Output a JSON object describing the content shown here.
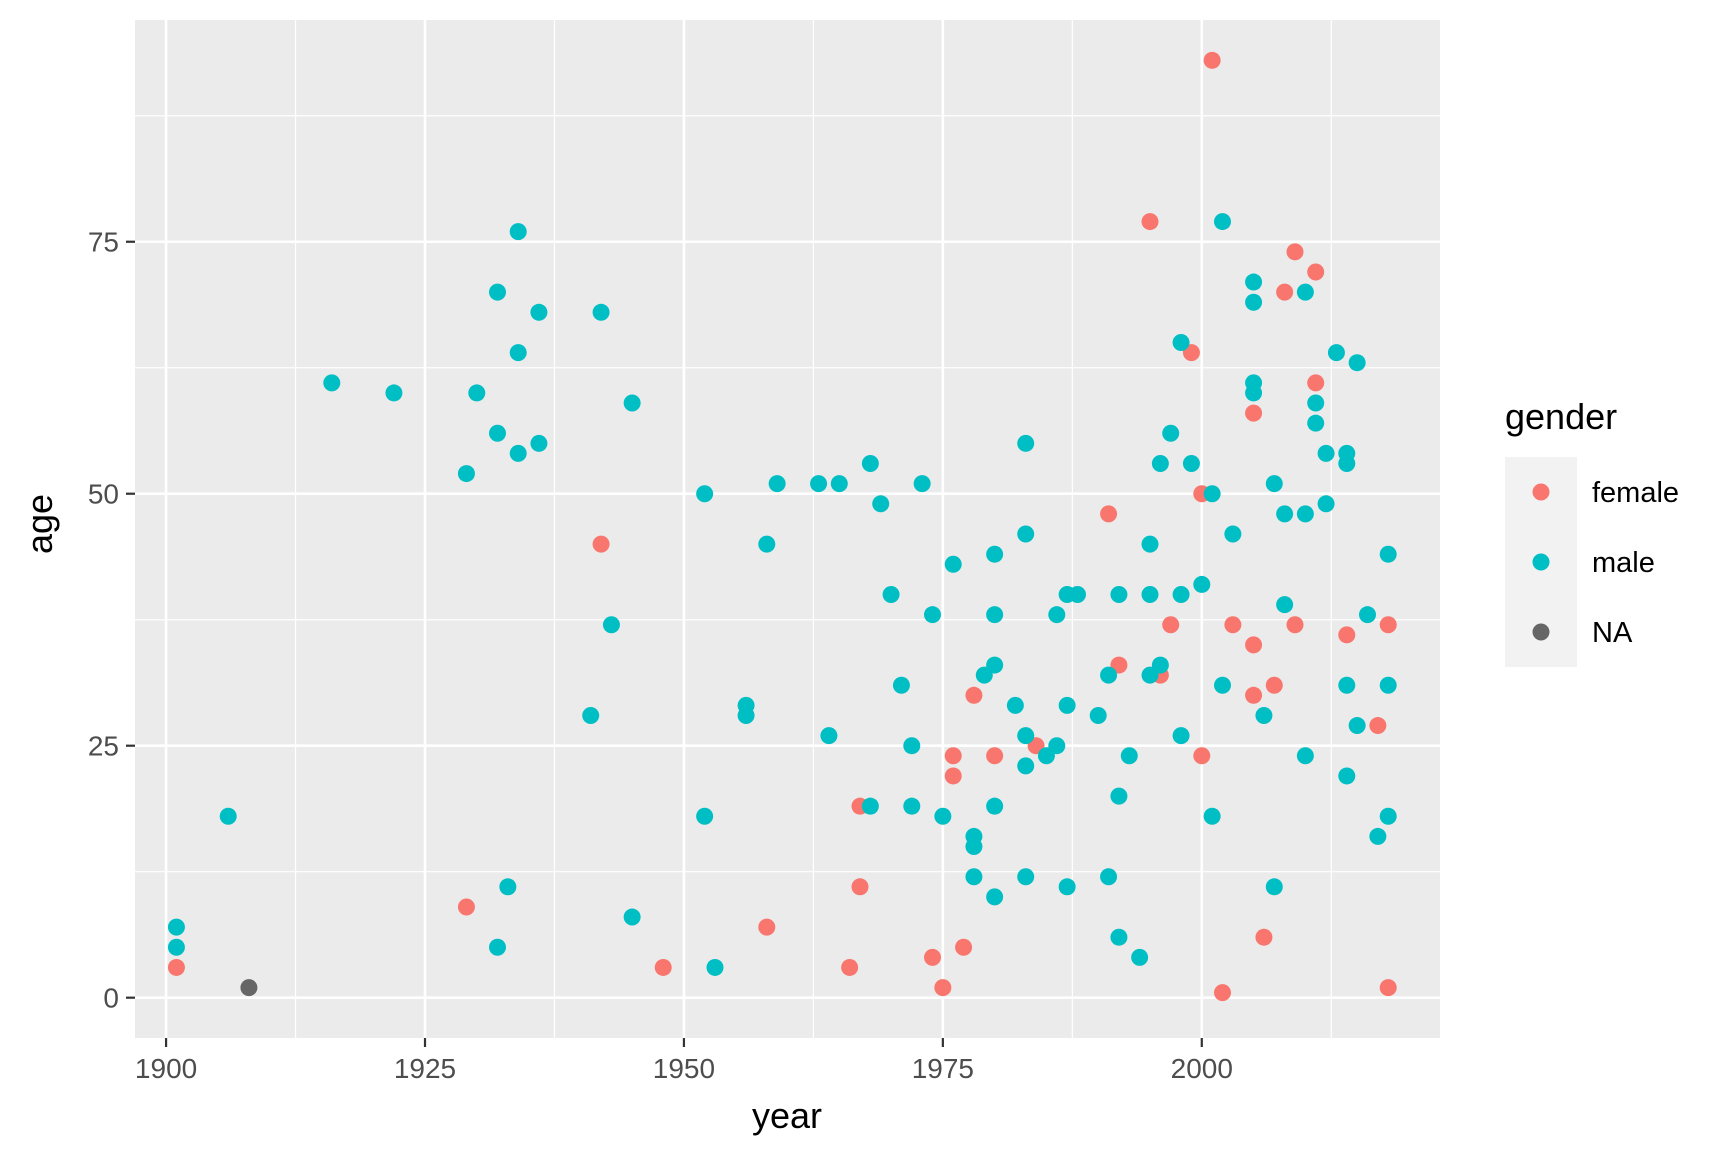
{
  "chart_data": {
    "type": "scatter",
    "xlabel": "year",
    "ylabel": "age",
    "xlim": [
      1897,
      2023
    ],
    "ylim": [
      -4,
      97
    ],
    "x_ticks": [
      1900,
      1925,
      1950,
      1975,
      2000
    ],
    "y_ticks": [
      0,
      25,
      50,
      75
    ],
    "grid": true,
    "legend": {
      "title": "gender",
      "placement": "right"
    },
    "series": [
      {
        "name": "female",
        "color": "#F8766D",
        "points": [
          [
            1901,
            3
          ],
          [
            1929,
            9
          ],
          [
            1942,
            45
          ],
          [
            1948,
            3
          ],
          [
            1958,
            7
          ],
          [
            1966,
            3
          ],
          [
            1967,
            19
          ],
          [
            1967,
            11
          ],
          [
            1974,
            4
          ],
          [
            1975,
            1
          ],
          [
            1976,
            24
          ],
          [
            1976,
            22
          ],
          [
            1977,
            5
          ],
          [
            1978,
            30
          ],
          [
            1980,
            24
          ],
          [
            1984,
            25
          ],
          [
            1991,
            48
          ],
          [
            1992,
            33
          ],
          [
            1995,
            77
          ],
          [
            1996,
            32
          ],
          [
            1997,
            37
          ],
          [
            1999,
            64
          ],
          [
            2000,
            50
          ],
          [
            2000,
            24
          ],
          [
            2001,
            93
          ],
          [
            2002,
            0.5
          ],
          [
            2003,
            37
          ],
          [
            2005,
            58
          ],
          [
            2005,
            35
          ],
          [
            2005,
            30
          ],
          [
            2006,
            6
          ],
          [
            2007,
            31
          ],
          [
            2008,
            70
          ],
          [
            2009,
            74
          ],
          [
            2009,
            37
          ],
          [
            2011,
            72
          ],
          [
            2011,
            61
          ],
          [
            2014,
            36
          ],
          [
            2017,
            27
          ],
          [
            2018,
            37
          ],
          [
            2018,
            1
          ]
        ]
      },
      {
        "name": "male",
        "color": "#00BFC4",
        "points": [
          [
            1901,
            7
          ],
          [
            1901,
            5
          ],
          [
            1906,
            18
          ],
          [
            1916,
            61
          ],
          [
            1922,
            60
          ],
          [
            1929,
            52
          ],
          [
            1930,
            60
          ],
          [
            1932,
            70
          ],
          [
            1932,
            56
          ],
          [
            1932,
            5
          ],
          [
            1933,
            11
          ],
          [
            1934,
            76
          ],
          [
            1934,
            64
          ],
          [
            1934,
            54
          ],
          [
            1936,
            68
          ],
          [
            1936,
            55
          ],
          [
            1941,
            28
          ],
          [
            1942,
            68
          ],
          [
            1943,
            37
          ],
          [
            1945,
            59
          ],
          [
            1945,
            8
          ],
          [
            1952,
            50
          ],
          [
            1952,
            18
          ],
          [
            1953,
            3
          ],
          [
            1956,
            29
          ],
          [
            1956,
            28
          ],
          [
            1958,
            45
          ],
          [
            1959,
            51
          ],
          [
            1963,
            51
          ],
          [
            1964,
            26
          ],
          [
            1965,
            51
          ],
          [
            1968,
            53
          ],
          [
            1968,
            19
          ],
          [
            1969,
            49
          ],
          [
            1970,
            40
          ],
          [
            1971,
            31
          ],
          [
            1972,
            25
          ],
          [
            1972,
            19
          ],
          [
            1973,
            51
          ],
          [
            1974,
            38
          ],
          [
            1975,
            18
          ],
          [
            1976,
            43
          ],
          [
            1978,
            16
          ],
          [
            1978,
            15
          ],
          [
            1978,
            12
          ],
          [
            1979,
            32
          ],
          [
            1980,
            44
          ],
          [
            1980,
            38
          ],
          [
            1980,
            33
          ],
          [
            1980,
            19
          ],
          [
            1980,
            10
          ],
          [
            1982,
            29
          ],
          [
            1983,
            55
          ],
          [
            1983,
            46
          ],
          [
            1983,
            26
          ],
          [
            1983,
            23
          ],
          [
            1983,
            12
          ],
          [
            1985,
            24
          ],
          [
            1986,
            38
          ],
          [
            1986,
            25
          ],
          [
            1987,
            40
          ],
          [
            1987,
            29
          ],
          [
            1987,
            11
          ],
          [
            1988,
            40
          ],
          [
            1990,
            28
          ],
          [
            1991,
            32
          ],
          [
            1991,
            12
          ],
          [
            1992,
            40
          ],
          [
            1992,
            20
          ],
          [
            1992,
            6
          ],
          [
            1993,
            24
          ],
          [
            1994,
            4
          ],
          [
            1995,
            45
          ],
          [
            1995,
            40
          ],
          [
            1995,
            32
          ],
          [
            1996,
            53
          ],
          [
            1996,
            33
          ],
          [
            1997,
            56
          ],
          [
            1998,
            65
          ],
          [
            1998,
            40
          ],
          [
            1998,
            26
          ],
          [
            1999,
            53
          ],
          [
            2000,
            41
          ],
          [
            2001,
            50
          ],
          [
            2001,
            18
          ],
          [
            2002,
            77
          ],
          [
            2002,
            31
          ],
          [
            2003,
            46
          ],
          [
            2005,
            71
          ],
          [
            2005,
            69
          ],
          [
            2005,
            61
          ],
          [
            2005,
            60
          ],
          [
            2006,
            28
          ],
          [
            2007,
            51
          ],
          [
            2007,
            11
          ],
          [
            2008,
            48
          ],
          [
            2008,
            39
          ],
          [
            2010,
            70
          ],
          [
            2010,
            48
          ],
          [
            2010,
            24
          ],
          [
            2011,
            59
          ],
          [
            2011,
            57
          ],
          [
            2012,
            54
          ],
          [
            2012,
            49
          ],
          [
            2013,
            64
          ],
          [
            2014,
            54
          ],
          [
            2014,
            53
          ],
          [
            2014,
            31
          ],
          [
            2014,
            22
          ],
          [
            2015,
            63
          ],
          [
            2015,
            27
          ],
          [
            2016,
            38
          ],
          [
            2017,
            16
          ],
          [
            2018,
            44
          ],
          [
            2018,
            31
          ],
          [
            2018,
            18
          ]
        ]
      },
      {
        "name": "NA",
        "color": "#666666",
        "points": [
          [
            1908,
            1
          ]
        ]
      }
    ]
  }
}
